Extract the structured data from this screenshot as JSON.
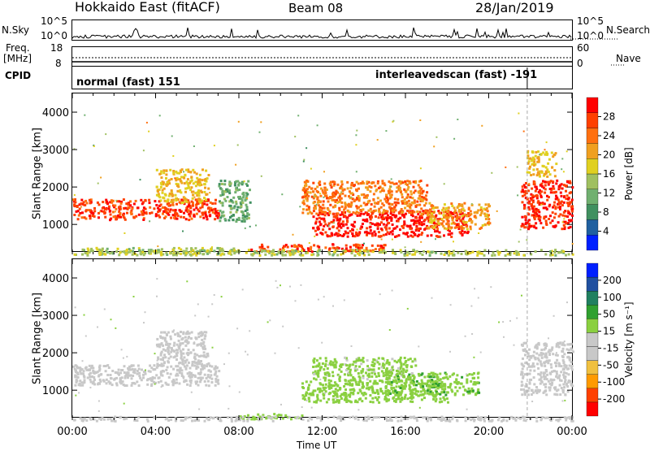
{
  "header": {
    "station": "Hokkaido East (fitACF)",
    "beam": "Beam 08",
    "date": "28/Jan/2019"
  },
  "top_panels": {
    "nsky_label": "N.Sky",
    "nsky_ticks": [
      "10^5",
      "10^0"
    ],
    "nsearch_label": "N.Search",
    "nsearch_ticks": [
      "10^5",
      "10^0"
    ],
    "freq_label_line1": "Freq.",
    "freq_label_line2": "[MHz]",
    "freq_ticks": [
      "18",
      "8"
    ],
    "nave_label": "Nave",
    "nave_ticks": [
      "60",
      "0"
    ],
    "cpid_label": "CPID",
    "cpid_modes": [
      "normal (fast) 151",
      "interleavedscan (fast) -191"
    ]
  },
  "colors": {
    "power_scale": [
      "#0020ff",
      "#2060a0",
      "#409060",
      "#70b070",
      "#a0c060",
      "#e0d020",
      "#f0a020",
      "#ff7010",
      "#ff4000",
      "#ff0000"
    ],
    "velocity_scale": [
      "#ff0000",
      "#ff4000",
      "#ff9a00",
      "#f0c040",
      "#c8c8c8",
      "#c8c8c8",
      "#8ad040",
      "#30a030",
      "#208060",
      "#2050a0",
      "#0020ff"
    ]
  },
  "chart_data": [
    {
      "type": "heatmap",
      "panel": "power",
      "ylabel": "Slant Range [km]",
      "yticks": [
        "1000",
        "2000",
        "3000",
        "4000"
      ],
      "ylim": [
        200,
        4500
      ],
      "xlim": [
        "00:00",
        "24:00"
      ],
      "colorbar_label": "Power [dB]",
      "colorbar_ticks": [
        "4",
        "8",
        "12",
        "16",
        "20",
        "24",
        "28"
      ],
      "colorbar_range": [
        0,
        30
      ],
      "regions": [
        {
          "t": [
            0.0,
            7.0
          ],
          "range": [
            1150,
            1700
          ],
          "value": 26
        },
        {
          "t": [
            4.0,
            6.5
          ],
          "range": [
            1600,
            2500
          ],
          "value": 18
        },
        {
          "t": [
            0.3,
            8.0
          ],
          "range": [
            250,
            400
          ],
          "value": 14
        },
        {
          "t": [
            7.0,
            8.5
          ],
          "range": [
            1100,
            2200
          ],
          "value": 10
        },
        {
          "t": [
            8.5,
            15.0
          ],
          "range": [
            300,
            500
          ],
          "value": 26
        },
        {
          "t": [
            11.5,
            19.0
          ],
          "range": [
            700,
            1400
          ],
          "value": 28
        },
        {
          "t": [
            11.0,
            17.0
          ],
          "range": [
            1300,
            2200
          ],
          "value": 22
        },
        {
          "t": [
            17.0,
            20.0
          ],
          "range": [
            900,
            1600
          ],
          "value": 20
        },
        {
          "t": [
            21.5,
            24.0
          ],
          "range": [
            900,
            2200
          ],
          "value": 27
        },
        {
          "t": [
            21.8,
            23.2
          ],
          "range": [
            2300,
            3000
          ],
          "value": 18
        },
        {
          "t": [
            0.0,
            24.0
          ],
          "range": [
            200,
            350
          ],
          "value": 14
        }
      ]
    },
    {
      "type": "heatmap",
      "panel": "velocity",
      "ylabel": "Slant Range [km]",
      "yticks": [
        "1000",
        "2000",
        "3000",
        "4000"
      ],
      "ylim": [
        200,
        4500
      ],
      "xlim": [
        "00:00",
        "24:00"
      ],
      "xticks": [
        "00:00",
        "04:00",
        "08:00",
        "12:00",
        "16:00",
        "20:00",
        "00:00"
      ],
      "xlabel": "Time UT",
      "colorbar_label": "Velocity [m s⁻¹]",
      "colorbar_ticks": [
        "-200",
        "-100",
        "-50",
        "-15",
        "15",
        "50",
        "100",
        "200"
      ],
      "colorbar_range": [
        -250,
        250
      ],
      "regions": [
        {
          "t": [
            0.0,
            7.0
          ],
          "range": [
            1150,
            1700
          ],
          "value": 0
        },
        {
          "t": [
            4.0,
            6.5
          ],
          "range": [
            1600,
            2600
          ],
          "value": 0
        },
        {
          "t": [
            8.0,
            11.0
          ],
          "range": [
            250,
            400
          ],
          "value": 40
        },
        {
          "t": [
            11.0,
            18.0
          ],
          "range": [
            700,
            1300
          ],
          "value": 45
        },
        {
          "t": [
            11.5,
            16.5
          ],
          "range": [
            1300,
            1900
          ],
          "value": 35
        },
        {
          "t": [
            15.0,
            19.5
          ],
          "range": [
            900,
            1500
          ],
          "value": 60
        },
        {
          "t": [
            21.5,
            24.0
          ],
          "range": [
            900,
            2300
          ],
          "value": 0
        },
        {
          "t": [
            0.0,
            24.0
          ],
          "range": [
            200,
            320
          ],
          "value": -40
        }
      ]
    }
  ]
}
